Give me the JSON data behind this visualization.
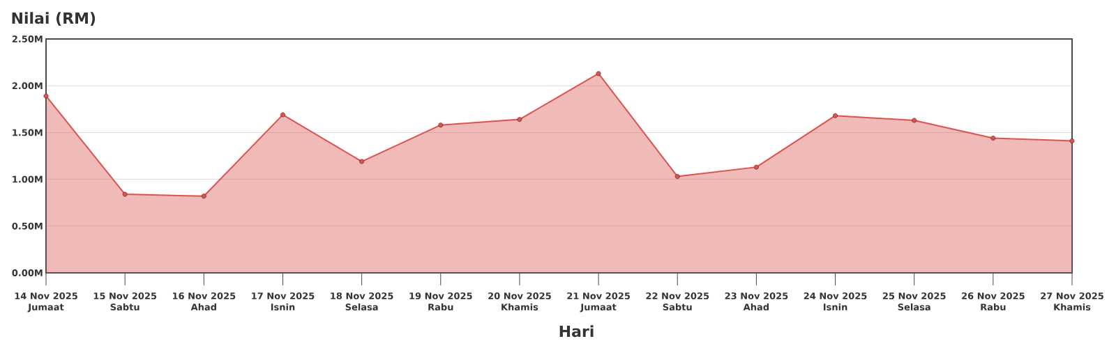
{
  "chart_data": {
    "type": "area",
    "ylabel": "Nilai (RM)",
    "xlabel": "Hari",
    "categories": [
      "14 Nov 2025 Jumaat",
      "15 Nov 2025 Sabtu",
      "16 Nov 2025 Ahad",
      "17 Nov 2025 Isnin",
      "18 Nov 2025 Selasa",
      "19 Nov 2025 Rabu",
      "20 Nov 2025 Khamis",
      "21 Nov 2025 Jumaat",
      "22 Nov 2025 Sabtu",
      "23 Nov 2025 Ahad",
      "24 Nov 2025 Isnin",
      "25 Nov 2025 Selasa",
      "26 Nov 2025 Rabu",
      "27 Nov 2025 Khamis"
    ],
    "values": [
      1.89,
      0.84,
      0.82,
      1.69,
      1.19,
      1.58,
      1.64,
      2.13,
      1.03,
      1.13,
      1.68,
      1.63,
      1.44,
      1.41
    ],
    "color": "#d9534f",
    "ylim": [
      0,
      2.5
    ],
    "yticks": [
      {
        "value": 0,
        "label": "0.00M"
      },
      {
        "value": 0.5,
        "label": "0.50M"
      },
      {
        "value": 1,
        "label": "1.00M"
      },
      {
        "value": 1.5,
        "label": "1.50M"
      },
      {
        "value": 2,
        "label": "2.00M"
      },
      {
        "value": 2.5,
        "label": "2.50M"
      }
    ],
    "grid": "y",
    "marker": "circle",
    "line_style": "solid"
  }
}
